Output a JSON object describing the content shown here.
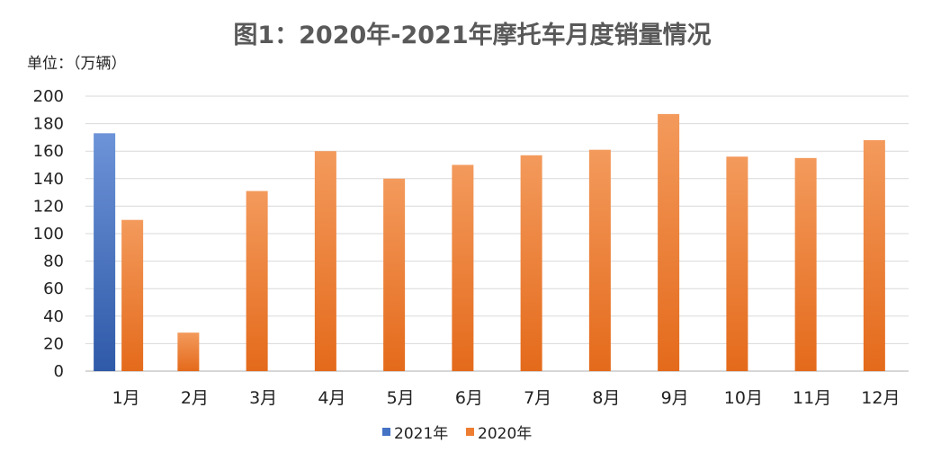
{
  "chart_data": {
    "type": "bar",
    "title": "图1：2020年-2021年摩托车月度销量情况",
    "unit_label": "单位：（万辆）",
    "categories": [
      "1月",
      "2月",
      "3月",
      "4月",
      "5月",
      "6月",
      "7月",
      "8月",
      "9月",
      "10月",
      "11月",
      "12月"
    ],
    "series": [
      {
        "name": "2021年",
        "color": "#4472c4",
        "values": [
          173,
          null,
          null,
          null,
          null,
          null,
          null,
          null,
          null,
          null,
          null,
          null
        ]
      },
      {
        "name": "2020年",
        "color": "#ed7d31",
        "values": [
          110,
          28,
          131,
          160,
          140,
          150,
          157,
          161,
          187,
          156,
          155,
          168
        ]
      }
    ],
    "ylim": [
      0,
      200
    ],
    "yticks": [
      0,
      20,
      40,
      60,
      80,
      100,
      120,
      140,
      160,
      180,
      200
    ],
    "grid": true,
    "legend_position": "bottom"
  }
}
